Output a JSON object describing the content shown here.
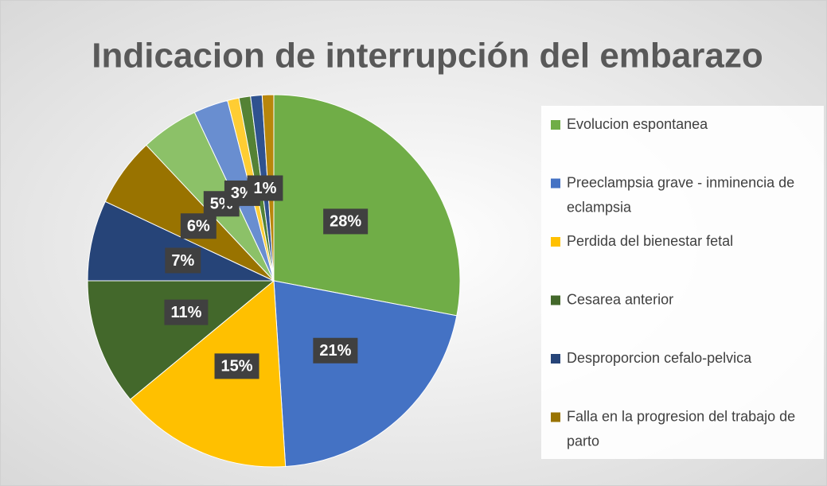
{
  "chart_data": {
    "type": "pie",
    "title": "Indicacion de interrupción del embarazo",
    "categories": [
      "Evolucion espontanea",
      "Preeclampsia grave - inminencia de eclampsia",
      "Perdida del bienestar fetal",
      "Cesarea anterior",
      "Desproporcion cefalo-pelvica",
      "Falla en la progresion del trabajo de parto",
      null,
      null,
      null,
      null,
      null,
      null
    ],
    "values": [
      28,
      21,
      15,
      11,
      7,
      6,
      5,
      3,
      1,
      1,
      1,
      1
    ],
    "value_labels": [
      "28%",
      "21%",
      "15%",
      "11%",
      "7%",
      "6%",
      "5%",
      "3%",
      null,
      null,
      "1%",
      null
    ],
    "colors": [
      "#70ad47",
      "#4472c4",
      "#ffc000",
      "#43682b",
      "#264478",
      "#997300",
      "#8cc168",
      "#698ed0",
      "#ffcd33",
      "#548235",
      "#2f528f",
      "#b8860b"
    ],
    "legend": "right"
  }
}
